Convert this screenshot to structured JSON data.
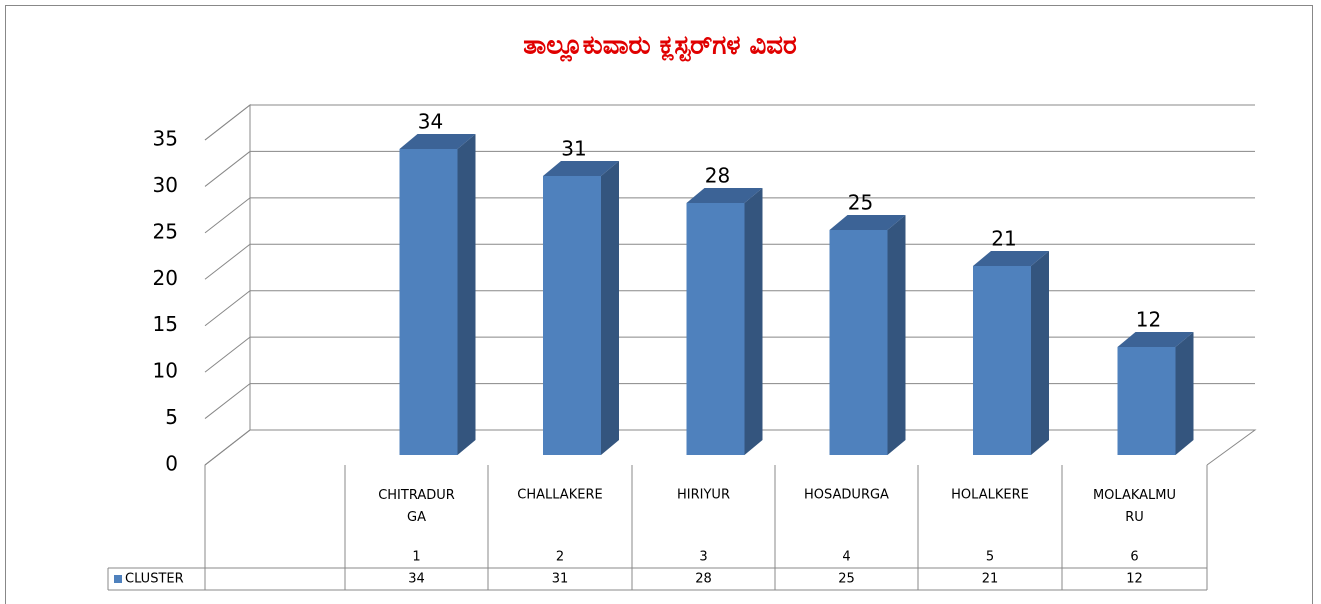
{
  "chart_data": {
    "type": "bar3d",
    "title": "ತಾಲ್ಲೂಕುವಾರು ಕ್ಲಸ್ಟರ್‌ಗಳ ವಿವರ",
    "categories": [
      "CHITRADURGA",
      "CHALLAKERE",
      "HIRIYUR",
      "HOSADURGA",
      "HOLALKERE",
      "MOLAKALMURU"
    ],
    "category_numbers": [
      1,
      2,
      3,
      4,
      5,
      6
    ],
    "series": [
      {
        "name": "CLUSTER",
        "color": "#4f81bd",
        "values": [
          34,
          31,
          28,
          25,
          21,
          12
        ]
      }
    ],
    "ylim": [
      0,
      35
    ],
    "yticks": [
      0,
      5,
      10,
      15,
      20,
      25,
      30,
      35
    ],
    "grid": true
  }
}
